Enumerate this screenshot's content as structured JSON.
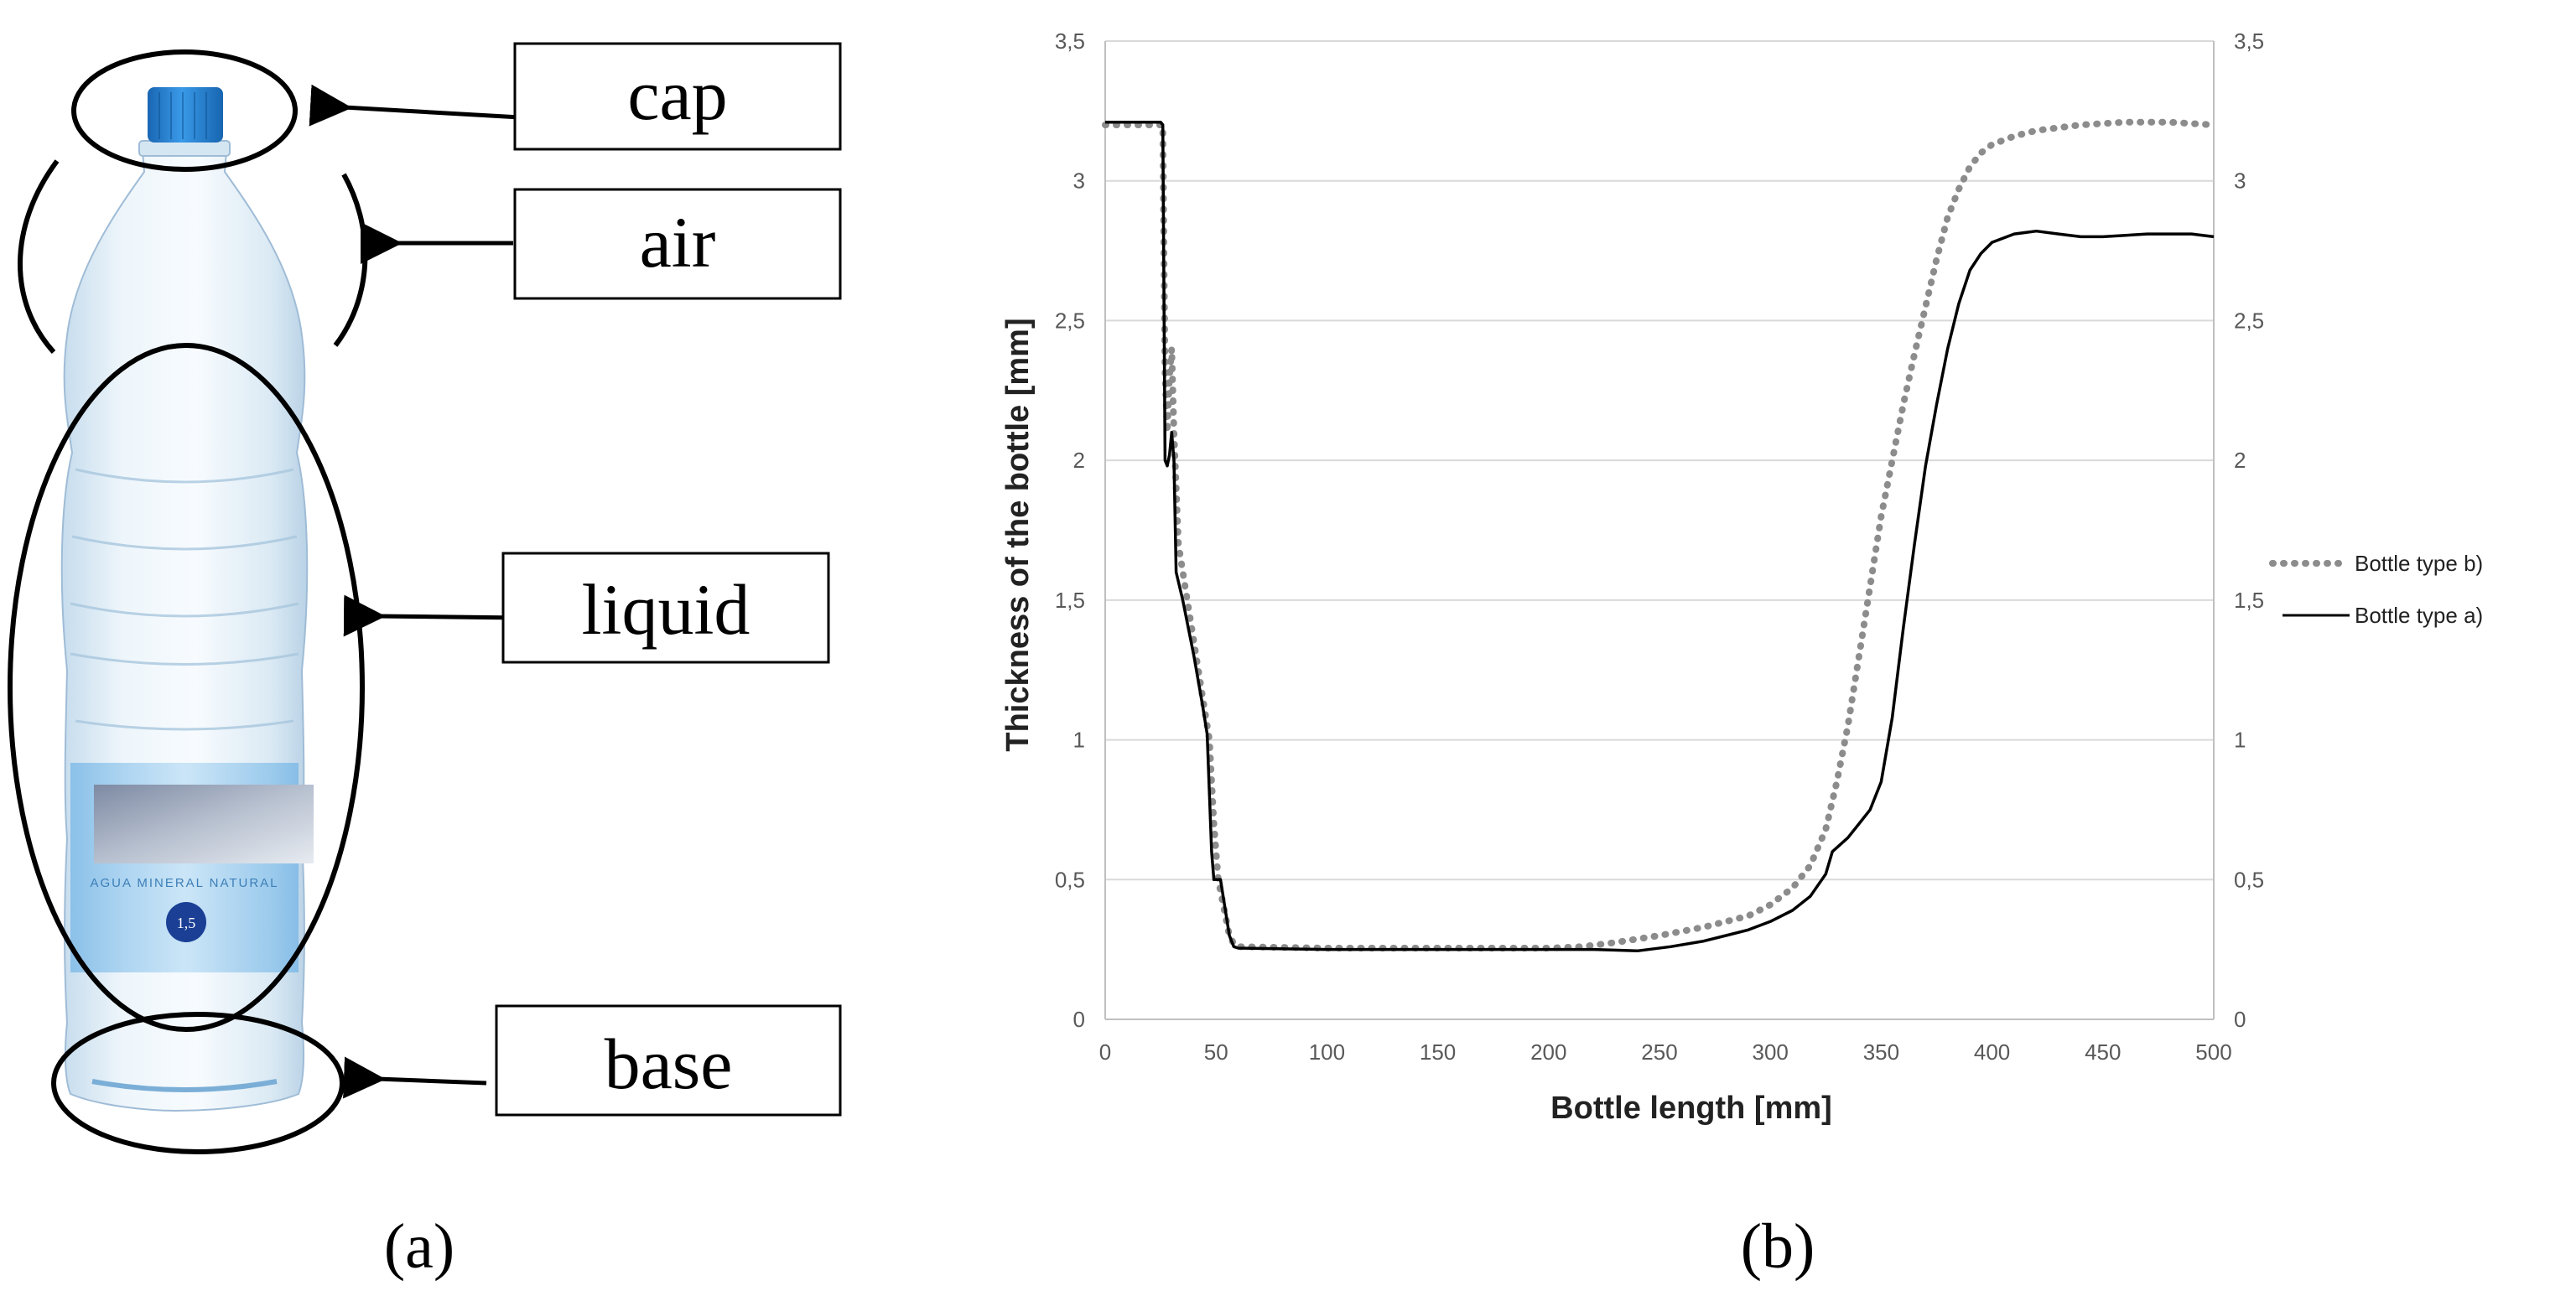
{
  "figure": {
    "panel_a": {
      "label": "(a)",
      "callouts": [
        "cap",
        "air",
        "liquid",
        "base"
      ],
      "bottle_label": {
        "text": "AGUA MINERAL NATURAL",
        "badge": "1,5"
      }
    },
    "panel_b": {
      "label": "(b)"
    }
  },
  "colors": {
    "series_a": "#000000",
    "series_b": "#8c8c8c",
    "cap": "#1f7fd0",
    "grid": "#d9d9d9"
  },
  "chart_data": {
    "type": "line",
    "title": "",
    "xlabel": "Bottle length [mm]",
    "ylabel": "Thickness of the bottle [mm]",
    "xlim": [
      0,
      500
    ],
    "ylim": [
      0,
      3.5
    ],
    "grid": true,
    "legend_position": "right",
    "x_ticks": [
      0,
      50,
      100,
      150,
      200,
      250,
      300,
      350,
      400,
      450,
      500
    ],
    "y_ticks": [
      0,
      0.5,
      1,
      1.5,
      2,
      2.5,
      3,
      3.5
    ],
    "x_tick_labels": [
      "0",
      "50",
      "100",
      "150",
      "200",
      "250",
      "300",
      "350",
      "400",
      "450",
      "500"
    ],
    "y_tick_labels": [
      "0",
      "0,5",
      "1",
      "1,5",
      "2",
      "2,5",
      "3",
      "3,5"
    ],
    "series": [
      {
        "name": "Bottle type b)",
        "style": "dotted",
        "points": [
          [
            0,
            3.2
          ],
          [
            25,
            3.2
          ],
          [
            26,
            3.2
          ],
          [
            27,
            2.3
          ],
          [
            28,
            2.1
          ],
          [
            29,
            2.3
          ],
          [
            30,
            2.4
          ],
          [
            31,
            2.1
          ],
          [
            33,
            1.7
          ],
          [
            36,
            1.55
          ],
          [
            40,
            1.35
          ],
          [
            44,
            1.15
          ],
          [
            47,
            1.0
          ],
          [
            49,
            0.7
          ],
          [
            51,
            0.5
          ],
          [
            53,
            0.42
          ],
          [
            56,
            0.3
          ],
          [
            58,
            0.27
          ],
          [
            60,
            0.26
          ],
          [
            100,
            0.255
          ],
          [
            150,
            0.255
          ],
          [
            200,
            0.255
          ],
          [
            215,
            0.26
          ],
          [
            230,
            0.275
          ],
          [
            250,
            0.3
          ],
          [
            270,
            0.33
          ],
          [
            290,
            0.37
          ],
          [
            300,
            0.41
          ],
          [
            310,
            0.47
          ],
          [
            318,
            0.55
          ],
          [
            325,
            0.68
          ],
          [
            330,
            0.85
          ],
          [
            335,
            1.05
          ],
          [
            340,
            1.3
          ],
          [
            345,
            1.55
          ],
          [
            350,
            1.8
          ],
          [
            355,
            2.0
          ],
          [
            360,
            2.2
          ],
          [
            365,
            2.38
          ],
          [
            370,
            2.55
          ],
          [
            375,
            2.72
          ],
          [
            380,
            2.87
          ],
          [
            385,
            2.97
          ],
          [
            390,
            3.05
          ],
          [
            395,
            3.1
          ],
          [
            400,
            3.13
          ],
          [
            410,
            3.16
          ],
          [
            420,
            3.18
          ],
          [
            440,
            3.2
          ],
          [
            460,
            3.21
          ],
          [
            480,
            3.21
          ],
          [
            500,
            3.2
          ]
        ]
      },
      {
        "name": "Bottle type a)",
        "style": "solid",
        "points": [
          [
            0,
            3.21
          ],
          [
            25,
            3.21
          ],
          [
            26,
            3.2
          ],
          [
            27,
            2.0
          ],
          [
            28,
            1.98
          ],
          [
            29,
            2.02
          ],
          [
            30,
            2.1
          ],
          [
            31,
            2.0
          ],
          [
            32,
            1.6
          ],
          [
            35,
            1.5
          ],
          [
            40,
            1.3
          ],
          [
            44,
            1.12
          ],
          [
            46,
            1.02
          ],
          [
            48,
            0.6
          ],
          [
            49,
            0.5
          ],
          [
            52,
            0.5
          ],
          [
            54,
            0.4
          ],
          [
            56,
            0.3
          ],
          [
            58,
            0.26
          ],
          [
            60,
            0.255
          ],
          [
            100,
            0.25
          ],
          [
            150,
            0.25
          ],
          [
            200,
            0.25
          ],
          [
            220,
            0.25
          ],
          [
            240,
            0.245
          ],
          [
            255,
            0.26
          ],
          [
            270,
            0.28
          ],
          [
            280,
            0.3
          ],
          [
            290,
            0.32
          ],
          [
            300,
            0.35
          ],
          [
            310,
            0.39
          ],
          [
            318,
            0.44
          ],
          [
            325,
            0.52
          ],
          [
            328,
            0.6
          ],
          [
            335,
            0.65
          ],
          [
            340,
            0.7
          ],
          [
            345,
            0.75
          ],
          [
            350,
            0.85
          ],
          [
            355,
            1.08
          ],
          [
            360,
            1.4
          ],
          [
            365,
            1.7
          ],
          [
            370,
            1.98
          ],
          [
            375,
            2.2
          ],
          [
            380,
            2.4
          ],
          [
            385,
            2.56
          ],
          [
            390,
            2.68
          ],
          [
            395,
            2.74
          ],
          [
            400,
            2.78
          ],
          [
            410,
            2.81
          ],
          [
            420,
            2.82
          ],
          [
            430,
            2.81
          ],
          [
            440,
            2.8
          ],
          [
            450,
            2.8
          ],
          [
            470,
            2.81
          ],
          [
            490,
            2.81
          ],
          [
            500,
            2.8
          ]
        ]
      }
    ]
  }
}
